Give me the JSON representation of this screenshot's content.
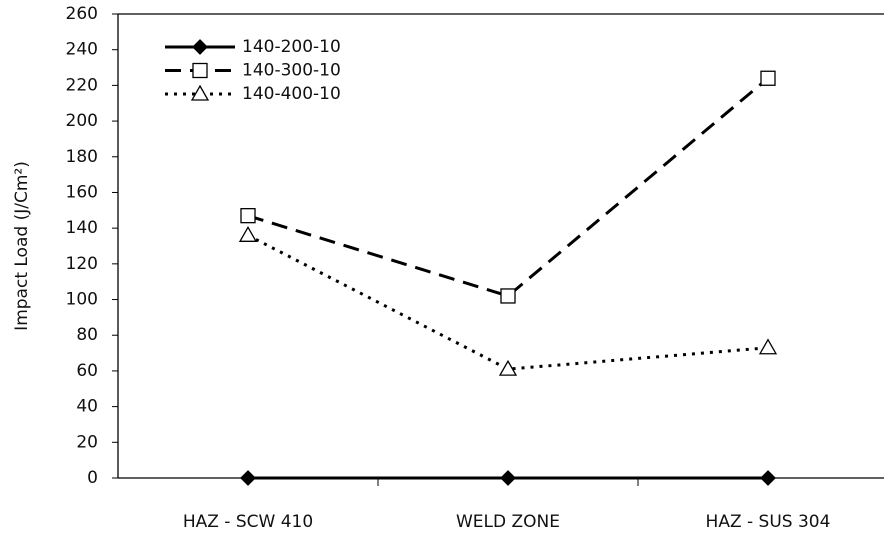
{
  "chart_data": {
    "type": "line",
    "y_label": "Impact Load (J/Cm²)",
    "categories": [
      "HAZ - SCW 410",
      "WELD ZONE",
      "HAZ - SUS 304"
    ],
    "series": [
      {
        "name": "140-200-10",
        "color": "#000000",
        "marker": "diamond",
        "dash": "solid",
        "values": [
          0,
          0,
          0
        ]
      },
      {
        "name": "140-300-10",
        "color": "#000000",
        "marker": "square",
        "dash": "dashed",
        "values": [
          147,
          102,
          224
        ]
      },
      {
        "name": "140-400-10",
        "color": "#000000",
        "marker": "triangle",
        "dash": "dotted",
        "values": [
          136,
          61,
          73
        ]
      }
    ],
    "ylim": [
      0,
      260
    ],
    "yticks": [
      0,
      20,
      40,
      60,
      80,
      100,
      120,
      140,
      160,
      180,
      200,
      220,
      240,
      260
    ],
    "legend": "upper-left"
  }
}
